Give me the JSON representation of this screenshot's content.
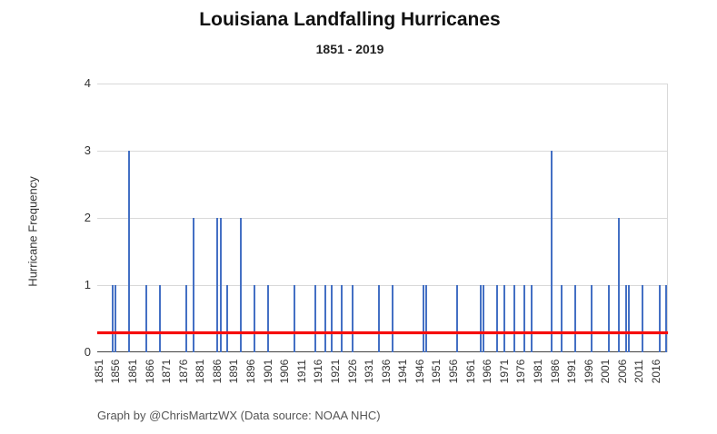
{
  "header": {
    "title": "Louisiana Landfalling Hurricanes",
    "subtitle": "1851 - 2019"
  },
  "footer": {
    "credit": "Graph by @ChrisMartzWX (Data source: NOAA NHC)"
  },
  "chart_data": {
    "type": "bar",
    "title": "Louisiana Landfalling Hurricanes",
    "subtitle": "1851 - 2019",
    "xlabel": "",
    "ylabel": "Hurricane Frequency",
    "x_range": [
      1851,
      2019
    ],
    "ylim": [
      0,
      4
    ],
    "yticks": [
      0,
      1,
      2,
      3,
      4
    ],
    "grid": true,
    "bar_color": "#4470c4",
    "gridline_color": "#d9d9d9",
    "axis_color": "#424242",
    "xtick_years": [
      1851,
      1856,
      1861,
      1866,
      1871,
      1876,
      1881,
      1886,
      1891,
      1896,
      1901,
      1906,
      1911,
      1916,
      1921,
      1926,
      1931,
      1936,
      1941,
      1946,
      1951,
      1956,
      1961,
      1966,
      1971,
      1976,
      1981,
      1986,
      1991,
      1996,
      2001,
      2006,
      2011,
      2016
    ],
    "values_by_year": {
      "1855": 1,
      "1856": 1,
      "1860": 3,
      "1865": 1,
      "1869": 1,
      "1877": 1,
      "1879": 2,
      "1886": 2,
      "1887": 2,
      "1889": 1,
      "1893": 2,
      "1897": 1,
      "1901": 1,
      "1909": 1,
      "1915": 1,
      "1918": 1,
      "1920": 1,
      "1923": 1,
      "1926": 1,
      "1934": 1,
      "1938": 1,
      "1947": 1,
      "1948": 1,
      "1957": 1,
      "1964": 1,
      "1965": 1,
      "1969": 1,
      "1971": 1,
      "1974": 1,
      "1977": 1,
      "1979": 1,
      "1985": 3,
      "1988": 1,
      "1992": 1,
      "1997": 1,
      "2002": 1,
      "2005": 2,
      "2007": 1,
      "2008": 1,
      "2012": 1,
      "2017": 1,
      "2019": 1
    },
    "average_line": {
      "value": 0.296,
      "color": "#f60d0d"
    }
  }
}
